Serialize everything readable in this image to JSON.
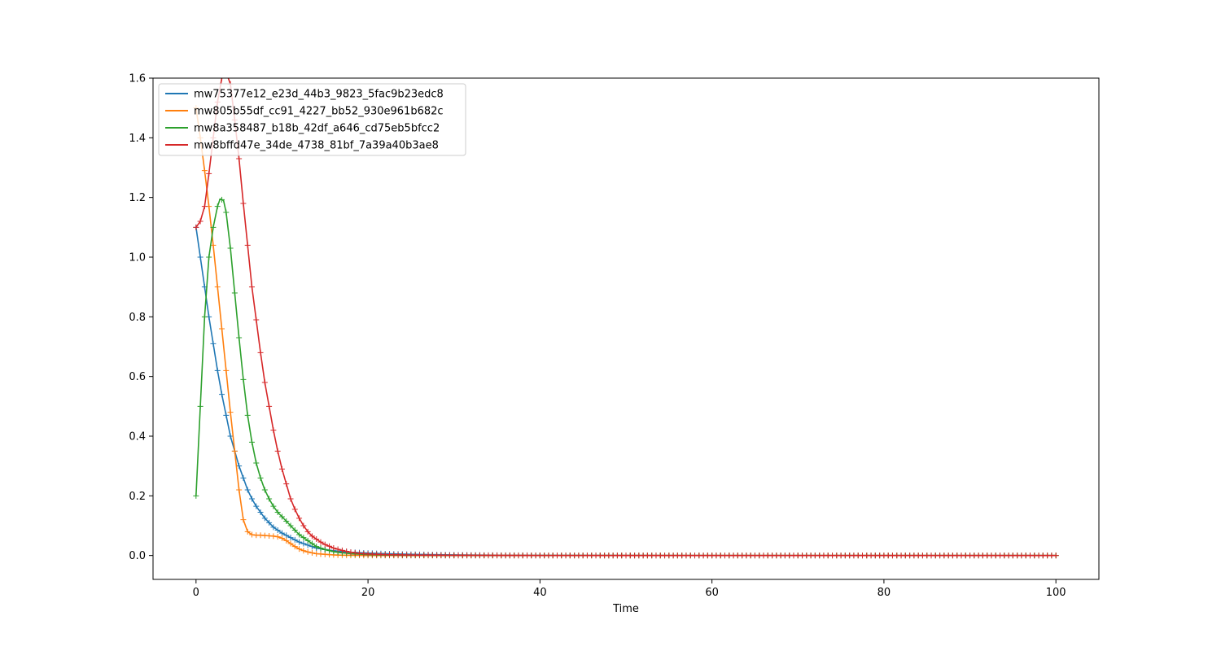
{
  "chart_data": {
    "type": "line",
    "title": "",
    "xlabel": "Time",
    "ylabel": "",
    "xlim": [
      -5,
      105
    ],
    "ylim": [
      -0.08,
      1.6
    ],
    "xticks": [
      0,
      20,
      40,
      60,
      80,
      100
    ],
    "yticks": [
      0.0,
      0.2,
      0.4,
      0.6,
      0.8,
      1.0,
      1.2,
      1.4,
      1.6
    ],
    "xtick_labels": [
      "0",
      "20",
      "40",
      "60",
      "80",
      "100"
    ],
    "ytick_labels": [
      "0.0",
      "0.2",
      "0.4",
      "0.6",
      "0.8",
      "1.0",
      "1.2",
      "1.4",
      "1.6"
    ],
    "legend_position": "top-left",
    "marker": "+",
    "series": [
      {
        "name": "mw75377e12_e23d_44b3_9823_5fac9b23edc8",
        "color": "#1f77b4",
        "x": [
          0,
          0.5,
          1,
          1.5,
          2,
          2.5,
          3,
          3.5,
          4,
          4.5,
          5,
          5.5,
          6,
          6.5,
          7,
          7.5,
          8,
          8.5,
          9,
          9.5,
          10,
          11,
          12,
          13,
          14,
          15,
          16,
          17,
          18,
          20,
          22,
          25,
          30,
          35,
          40,
          50,
          60,
          70,
          80,
          90,
          100
        ],
        "y": [
          1.1,
          1.0,
          0.9,
          0.8,
          0.71,
          0.62,
          0.54,
          0.47,
          0.4,
          0.35,
          0.3,
          0.26,
          0.22,
          0.19,
          0.165,
          0.145,
          0.125,
          0.11,
          0.095,
          0.085,
          0.075,
          0.06,
          0.045,
          0.035,
          0.025,
          0.02,
          0.016,
          0.013,
          0.011,
          0.008,
          0.006,
          0.004,
          0.002,
          0.001,
          0.0005,
          0.0002,
          0.0001,
          0,
          0,
          0,
          0
        ]
      },
      {
        "name": "mw805b55df_cc91_4227_bb52_930e961b682c",
        "color": "#ff7f0e",
        "x": [
          0,
          0.5,
          1,
          1.5,
          2,
          2.5,
          3,
          3.5,
          4,
          4.5,
          5,
          5.5,
          6,
          6.5,
          7,
          7.5,
          8,
          8.5,
          9,
          9.5,
          10,
          10.5,
          11,
          11.5,
          12,
          12.5,
          13,
          13.5,
          14,
          15,
          16,
          17,
          18,
          20,
          25,
          30,
          40,
          50,
          60,
          70,
          80,
          90,
          100
        ],
        "y": [
          1.5,
          1.4,
          1.29,
          1.17,
          1.04,
          0.9,
          0.76,
          0.62,
          0.48,
          0.35,
          0.22,
          0.12,
          0.08,
          0.07,
          0.068,
          0.068,
          0.067,
          0.066,
          0.065,
          0.063,
          0.058,
          0.05,
          0.04,
          0.03,
          0.022,
          0.016,
          0.012,
          0.009,
          0.006,
          0.004,
          0.002,
          0.001,
          0.0005,
          0.0002,
          0,
          0,
          0,
          0,
          0,
          0,
          0,
          0,
          0
        ]
      },
      {
        "name": "mw8a358487_b18b_42df_a646_cd75eb5bfcc2",
        "color": "#2ca02c",
        "x": [
          0,
          0.5,
          1,
          1.5,
          2,
          2.5,
          2.8,
          3.2,
          3.5,
          4,
          4.5,
          5,
          5.5,
          6,
          6.5,
          7,
          7.5,
          8,
          8.5,
          9,
          9.5,
          10,
          10.5,
          11,
          11.5,
          12,
          12.5,
          13,
          14,
          15,
          16,
          17,
          18,
          20,
          22,
          25,
          30,
          40,
          50,
          60,
          70,
          80,
          90,
          100
        ],
        "y": [
          0.2,
          0.5,
          0.8,
          1.0,
          1.1,
          1.17,
          1.195,
          1.19,
          1.15,
          1.03,
          0.88,
          0.73,
          0.59,
          0.47,
          0.38,
          0.31,
          0.26,
          0.22,
          0.19,
          0.165,
          0.145,
          0.13,
          0.115,
          0.1,
          0.085,
          0.07,
          0.06,
          0.05,
          0.03,
          0.02,
          0.013,
          0.009,
          0.006,
          0.003,
          0.0015,
          0.0005,
          0.0002,
          0,
          0,
          0,
          0,
          0,
          0,
          0
        ]
      },
      {
        "name": "mw8bffd47e_34de_4738_81bf_7a39a40b3ae8",
        "color": "#d62728",
        "x": [
          0,
          0.5,
          1,
          1.5,
          2,
          2.5,
          3,
          3.5,
          4,
          4.5,
          5,
          5.5,
          6,
          6.5,
          7,
          7.5,
          8,
          8.5,
          9,
          9.5,
          10,
          10.5,
          11,
          11.5,
          12,
          12.5,
          13,
          13.5,
          14,
          14.5,
          15,
          16,
          17,
          18,
          19,
          20,
          22,
          25,
          30,
          40,
          50,
          60,
          70,
          80,
          90,
          100
        ],
        "y": [
          1.1,
          1.12,
          1.17,
          1.28,
          1.4,
          1.52,
          1.6,
          1.62,
          1.58,
          1.46,
          1.33,
          1.18,
          1.04,
          0.9,
          0.79,
          0.68,
          0.58,
          0.5,
          0.42,
          0.35,
          0.29,
          0.24,
          0.19,
          0.155,
          0.125,
          0.1,
          0.08,
          0.065,
          0.055,
          0.045,
          0.037,
          0.025,
          0.017,
          0.011,
          0.007,
          0.005,
          0.003,
          0.0015,
          0.0005,
          0.0001,
          0,
          0,
          0,
          0,
          0,
          0
        ]
      }
    ]
  }
}
